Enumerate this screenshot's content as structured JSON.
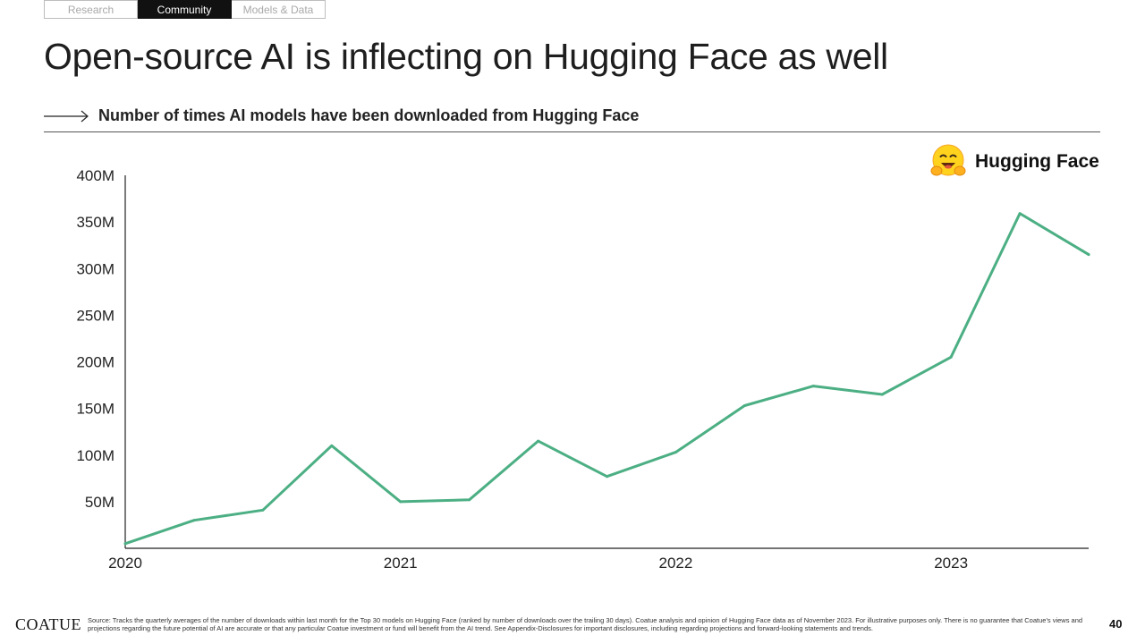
{
  "nav": {
    "tabs": [
      {
        "label": "Research",
        "active": false
      },
      {
        "label": "Community",
        "active": true
      },
      {
        "label": "Models & Data",
        "active": false
      }
    ]
  },
  "page": {
    "title": "Open-source AI is inflecting on Hugging Face as well",
    "subtitle": "Number of times AI models have been downloaded from Hugging Face"
  },
  "logo": {
    "icon": "hugging-face-emoji-icon",
    "text": "Hugging Face"
  },
  "chart_data": {
    "type": "line",
    "title": "",
    "xlabel": "",
    "ylabel": "",
    "x_ticks": [
      "2020",
      "2021",
      "2022",
      "2023"
    ],
    "y_ticks": [
      "50M",
      "100M",
      "150M",
      "200M",
      "250M",
      "300M",
      "350M",
      "400M"
    ],
    "ylim": [
      0,
      400
    ],
    "xlim": [
      2020.0,
      2023.5
    ],
    "grid": false,
    "line_color": "#4caf84",
    "series": [
      {
        "x": [
          2020.0,
          2020.25,
          2020.5,
          2020.75,
          2021.0,
          2021.25,
          2021.5,
          2021.75,
          2022.0,
          2022.25,
          2022.5,
          2022.75,
          2023.0,
          2023.25,
          2023.5
        ],
        "values": [
          5,
          30,
          41,
          110,
          50,
          52,
          115,
          77,
          103,
          153,
          174,
          165,
          205,
          359,
          315
        ]
      }
    ]
  },
  "footer": {
    "brand": "COATUE",
    "source": "Source: Tracks the quarterly averages of the number of downloads within last month for the Top 30 models on Hugging Face (ranked by number of downloads over the trailing 30 days). Coatue analysis and opinion of Hugging Face data as of November 2023. For illustrative purposes only. There is no guarantee that Coatue's views and projections regarding the future potential of AI are accurate or that any particular Coatue investment or fund will benefit from the AI trend. See Appendix-Disclosures for important disclosures, including regarding projections and forward-looking statements and trends.",
    "page_number": "40"
  }
}
